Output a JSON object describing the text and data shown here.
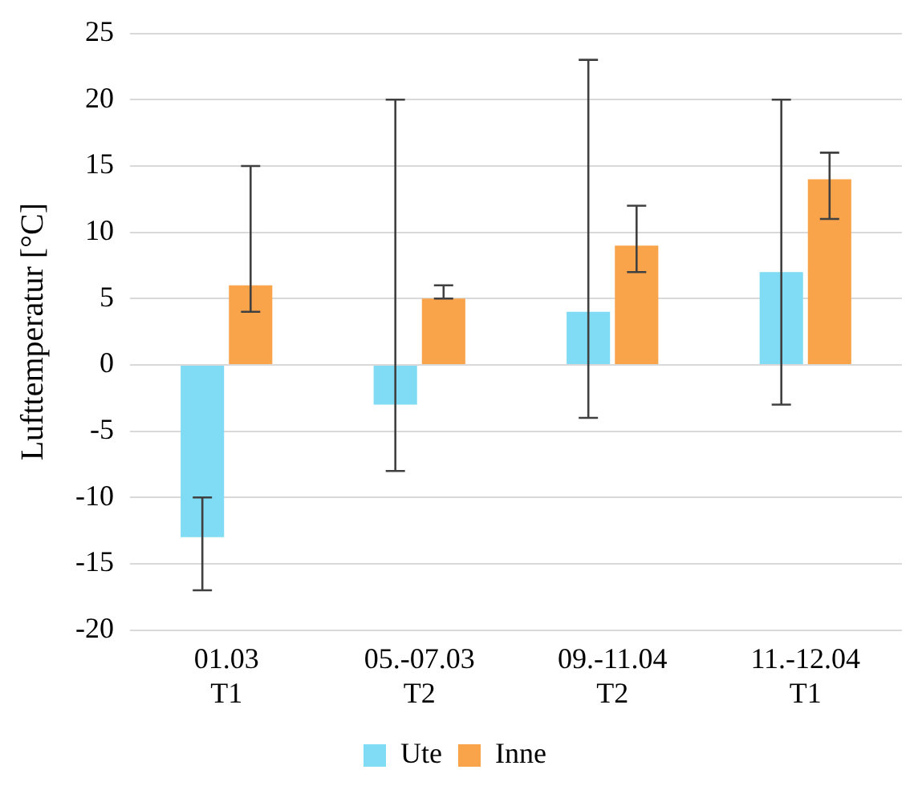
{
  "chart_data": {
    "type": "bar",
    "ylabel": "Lufttemperatur [°C]",
    "categories": [
      "01.03\nT1",
      "05.-07.03\nT2",
      "09.-11.04\nT2",
      "11.-12.04\nT1"
    ],
    "series": [
      {
        "name": "Ute",
        "color": "#7fdcf4",
        "values": [
          -13,
          -3,
          4,
          7
        ],
        "errors": [
          [
            -17,
            -10
          ],
          [
            -8,
            20
          ],
          [
            -4,
            23
          ],
          [
            -3,
            20
          ]
        ]
      },
      {
        "name": "Inne",
        "color": "#f9a34a",
        "values": [
          6,
          5,
          9,
          14
        ],
        "errors": [
          [
            4,
            15
          ],
          [
            5,
            6
          ],
          [
            7,
            12
          ],
          [
            11,
            16
          ]
        ]
      }
    ],
    "ylim": [
      -20,
      25
    ],
    "yticks": [
      -20,
      -15,
      -10,
      -5,
      0,
      5,
      10,
      15,
      20,
      25
    ],
    "grid": "y",
    "legend": "bottom"
  }
}
